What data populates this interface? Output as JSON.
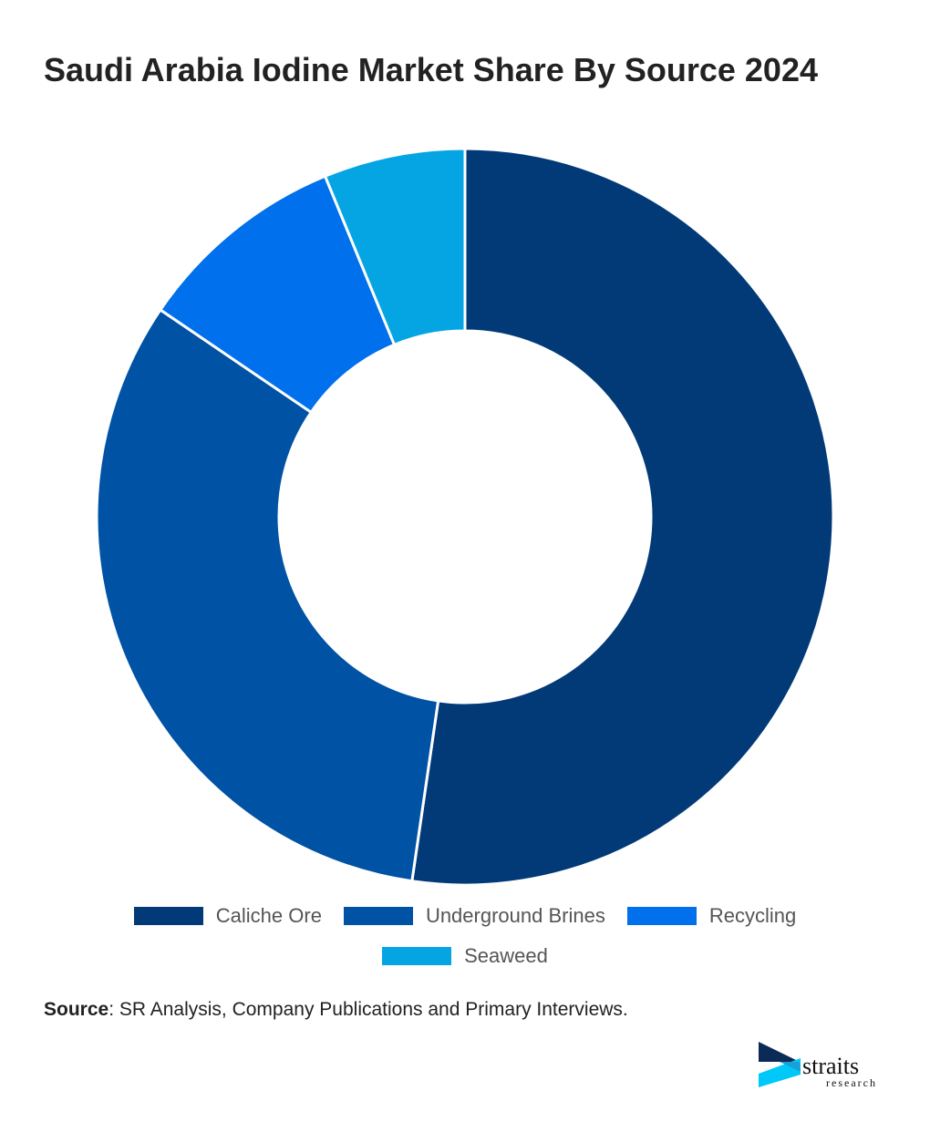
{
  "title": "Saudi Arabia Iodine Market Share By Source 2024",
  "chart_data": {
    "type": "pie",
    "donut": true,
    "title": "Saudi Arabia Iodine Market Share By Source 2024",
    "categories": [
      "Caliche Ore",
      "Underground Brines",
      "Recycling",
      "Seaweed"
    ],
    "values": [
      52.3,
      32.2,
      9.3,
      6.2
    ],
    "colors": [
      "#023a78",
      "#0052a5",
      "#0070ec",
      "#05a4e3"
    ],
    "legend": "bottom"
  },
  "source": {
    "label": "Source",
    "text": ": SR Analysis, Company Publications and Primary Interviews."
  },
  "logo": {
    "name": "straits",
    "sub": "research"
  }
}
